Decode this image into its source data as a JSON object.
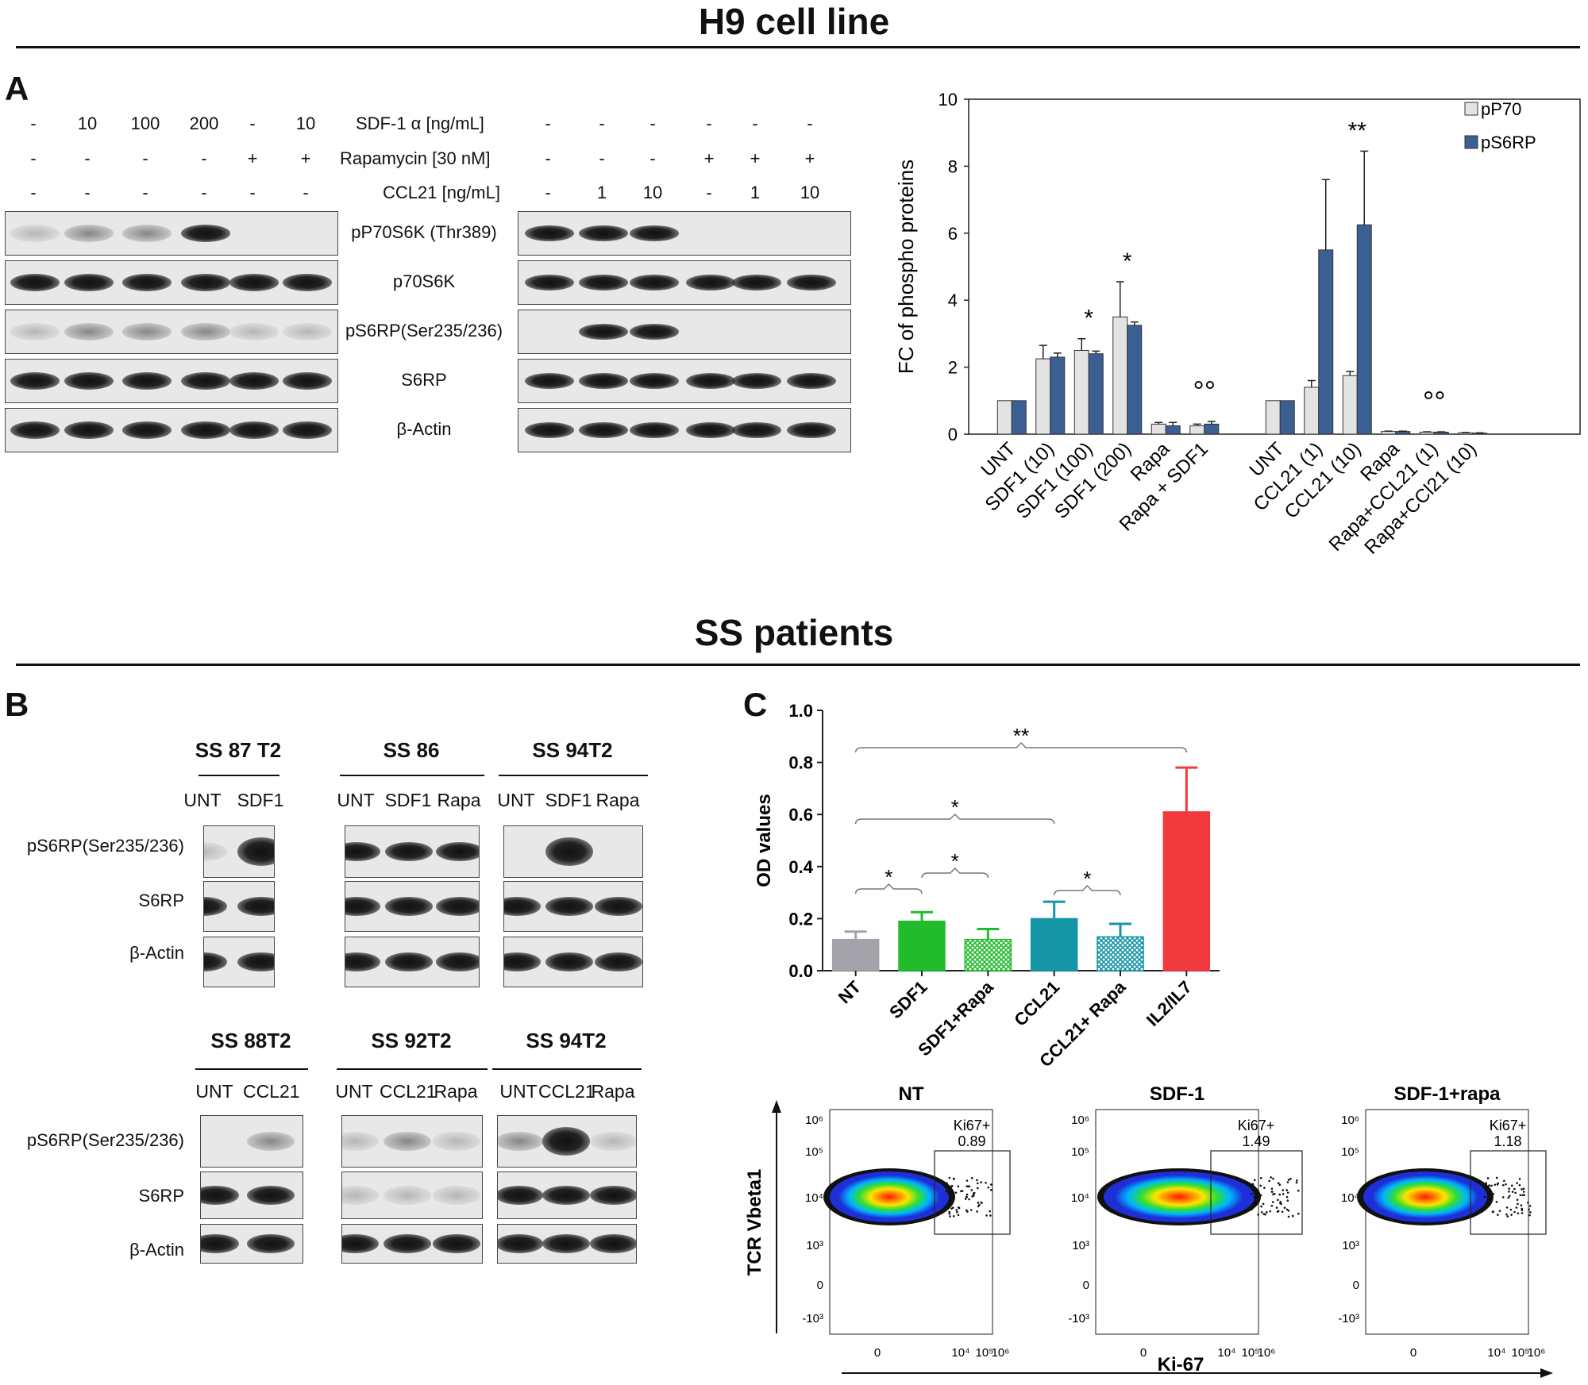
{
  "titles": {
    "top": "H9 cell line",
    "bottom": "SS patients"
  },
  "panel_letters": {
    "a": "A",
    "b": "B",
    "c": "C"
  },
  "blotA": {
    "row_labels": {
      "sdf": "SDF-1 α [ng/mL]",
      "rapa": "Rapamycin [30 nM]",
      "ccl": "CCL21 [ng/mL]"
    },
    "left": {
      "sdf": [
        "-",
        "10",
        "100",
        "200",
        "-",
        "10"
      ],
      "rapa": [
        "-",
        "-",
        "-",
        "-",
        "+",
        "+"
      ],
      "ccl": [
        "-",
        "-",
        "-",
        "-",
        "-",
        "-"
      ]
    },
    "right": {
      "sdf": [
        "-",
        "-",
        "-",
        "-",
        "-",
        "-"
      ],
      "rapa": [
        "-",
        "-",
        "-",
        "+",
        "+",
        "+"
      ],
      "ccl": [
        "-",
        "1",
        "10",
        "-",
        "1",
        "10"
      ]
    },
    "proteins": [
      "pP70S6K (Thr389)",
      "p70S6K",
      "pS6RP(Ser235/236)",
      "S6RP",
      "β-Actin"
    ]
  },
  "chart_data": [
    {
      "type": "bar",
      "ylabel": "FC of phospho proteins",
      "ylim": [
        0,
        10
      ],
      "yticks": [
        "0",
        "2",
        "4",
        "6",
        "8",
        "10"
      ],
      "categories": [
        "UNT",
        "SDF1 (10)",
        "SDF1 (100)",
        "SDF1 (200)",
        "Rapa",
        "Rapa + SDF1",
        "UNT",
        "CCL21 (1)",
        "CCL21 (10)",
        "Rapa",
        "Rapa+CCL21 (1)",
        "Rapa+CCl21 (10)"
      ],
      "series": [
        {
          "name": "pP70",
          "color": "#e3e3e3",
          "values": [
            1,
            2.25,
            2.5,
            3.5,
            0.3,
            0.25,
            1,
            1.4,
            1.75,
            0.08,
            0.06,
            0.04
          ],
          "errors": [
            0,
            0.4,
            0.35,
            1.05,
            0.05,
            0.05,
            0,
            0.2,
            0.12,
            0.01,
            0.01,
            0.01
          ]
        },
        {
          "name": "pS6RP",
          "color": "#3c5f93",
          "values": [
            1,
            2.3,
            2.4,
            3.25,
            0.25,
            0.3,
            1,
            5.5,
            6.25,
            0.08,
            0.06,
            0.03
          ],
          "errors": [
            0,
            0.12,
            0.08,
            0.1,
            0.1,
            0.08,
            0,
            2.1,
            2.2,
            0.01,
            0.01,
            0.01
          ]
        }
      ],
      "annotations": [
        {
          "category": "SDF1 (100)",
          "text": "*"
        },
        {
          "category": "SDF1 (200)",
          "text": "*"
        },
        {
          "category": "Rapa + SDF1",
          "text": "°°"
        },
        {
          "category": "CCL21 (10)",
          "text": "**"
        },
        {
          "category": "Rapa+CCL21 (1)",
          "text": "°°"
        }
      ]
    },
    {
      "type": "bar",
      "ylabel": "OD values",
      "ylim": [
        0,
        1.0
      ],
      "yticks": [
        "0.0",
        "0.2",
        "0.4",
        "0.6",
        "0.8",
        "1.0"
      ],
      "categories": [
        "NT",
        "SDF1",
        "SDF1+Rapa",
        "CCL21",
        "CCL21+ Rapa",
        "IL2/IL7"
      ],
      "values": [
        0.12,
        0.19,
        0.12,
        0.2,
        0.13,
        0.61
      ],
      "errors": [
        0.03,
        0.035,
        0.04,
        0.065,
        0.05,
        0.17
      ],
      "colors": [
        "#a3a3a9",
        "#22bb2c",
        "#22bb2c",
        "#1596a6",
        "#1596a6",
        "#f2393e"
      ],
      "hatched": [
        false,
        false,
        true,
        false,
        true,
        false
      ],
      "significance": [
        {
          "from": 0,
          "to": 1,
          "text": "*"
        },
        {
          "from": 1,
          "to": 2,
          "text": "*"
        },
        {
          "from": 0,
          "to": 3,
          "text": "*"
        },
        {
          "from": 3,
          "to": 4,
          "text": "*"
        },
        {
          "from": 0,
          "to": 5,
          "text": "**"
        }
      ]
    }
  ],
  "blotB": {
    "row_labels": [
      "pS6RP(Ser235/236)",
      "S6RP",
      "β-Actin"
    ],
    "groups_top": [
      {
        "name": "SS 87  T2",
        "lanes": [
          "UNT",
          "SDF1"
        ]
      },
      {
        "name": "SS 86",
        "lanes": [
          "UNT",
          "SDF1",
          "Rapa"
        ]
      },
      {
        "name": "SS 94T2",
        "lanes": [
          "UNT",
          "SDF1",
          "Rapa"
        ]
      }
    ],
    "groups_bottom": [
      {
        "name": "SS 88T2",
        "lanes": [
          "UNT",
          "CCL21"
        ]
      },
      {
        "name": "SS 92T2",
        "lanes": [
          "UNT",
          "CCL21",
          "Rapa"
        ]
      },
      {
        "name": "SS 94T2",
        "lanes": [
          "UNT",
          "CCL21",
          "Rapa"
        ]
      }
    ]
  },
  "flow": {
    "plots": [
      {
        "title": "NT",
        "gate": "Ki67+",
        "value": "0.89"
      },
      {
        "title": "SDF-1",
        "gate": "Ki67+",
        "value": "1.49"
      },
      {
        "title": "SDF-1+rapa",
        "gate": "Ki67+",
        "value": "1.18"
      }
    ],
    "yaxis": "TCR Vbeta1",
    "xaxis": "Ki-67",
    "yticks": [
      "10⁶",
      "10⁵",
      "10⁴",
      "10³",
      "0",
      "-10³"
    ],
    "xticks": [
      "0",
      "10⁴",
      "10⁵",
      "10⁶"
    ]
  }
}
